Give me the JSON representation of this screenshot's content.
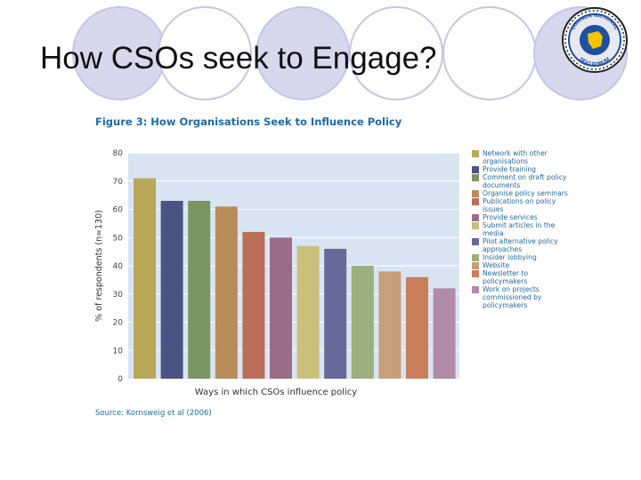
{
  "slide": {
    "title": "How CSOs seek to Engage?",
    "logo": {
      "icon": "uganda-national-ngo-forum-logo",
      "text_top": "UGANDA NATIONAL",
      "text_bottom": "NGO FORUM"
    }
  },
  "figure": {
    "title": "Figure 3: How Organisations Seek to Influence Policy",
    "source": "Source: Kornsweig et al (2006)"
  },
  "colors": {
    "ring": "#ccccee",
    "plot_bg": "#d9e4f2",
    "grid": "#ffffff",
    "text_blue": "#1f6aa5"
  },
  "chart_data": {
    "type": "bar",
    "title": "Figure 3: How Organisations Seek to Influence Policy",
    "xlabel": "Ways in which CSOs influence policy",
    "ylabel": "% of respondents (n=130)",
    "ylim": [
      0,
      80
    ],
    "yticks": [
      "0",
      "10",
      "20",
      "30",
      "40",
      "50",
      "60",
      "70",
      "80"
    ],
    "grid": true,
    "legend_position": "right",
    "categories": [
      "Network with other organisations",
      "Provide training",
      "Comment on draft policy documents",
      "Organise policy seminars",
      "Publications on policy issues",
      "Provide services",
      "Submit articles in the media",
      "Pilot alternative policy approaches",
      "Insider lobbying",
      "Website",
      "Newsletter to policymakers",
      "Work on projects commissioned by policymakers"
    ],
    "values": [
      71,
      63,
      63,
      61,
      52,
      50,
      47,
      46,
      40,
      38,
      36,
      32
    ],
    "colors": [
      "#b8a858",
      "#4b5384",
      "#7a9660",
      "#b98c5c",
      "#bb6e58",
      "#9c6b8a",
      "#c9c07a",
      "#666b9a",
      "#9bb07e",
      "#c79f78",
      "#c97f5c",
      "#b08aa6"
    ]
  }
}
